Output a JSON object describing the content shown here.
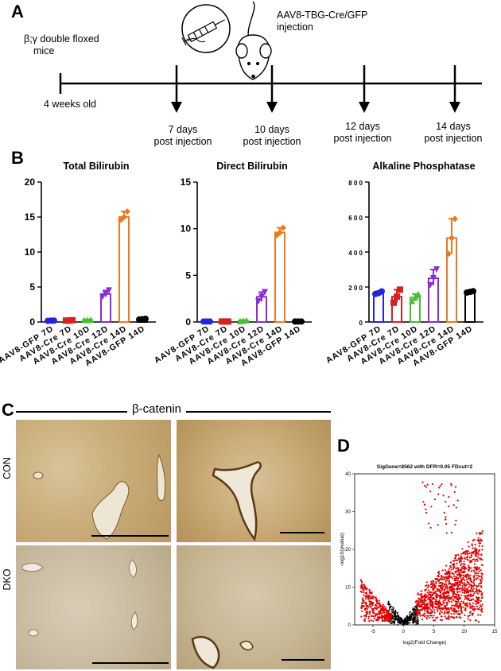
{
  "panel_a": {
    "letter": "A",
    "strain_label": [
      "β;γ double floxed",
      "mice"
    ],
    "injection_label": [
      "AAV8-TBG-Cre/GFP",
      "injection"
    ],
    "start_label": "4 weeks old",
    "timepoints": [
      [
        "7 days",
        "post injection"
      ],
      [
        "10 days",
        "post injection"
      ],
      [
        "12 days",
        "post injection"
      ],
      [
        "14 days",
        "post injection"
      ]
    ]
  },
  "panel_b": {
    "letter": "B"
  },
  "chart_data": [
    {
      "type": "bar",
      "title": "Total Bilirubin",
      "categories": [
        "AAV8-GFP 7D",
        "AAV8-Cre 7D",
        "AAV8-Cre 10D",
        "AAV8-Cre 12D",
        "AAV8-Cre 14D",
        "AAV8-GFP 14D"
      ],
      "values": [
        0.2,
        0.2,
        0.3,
        4.0,
        15.0,
        0.4
      ],
      "points": [
        [
          0.15,
          0.2,
          0.2
        ],
        [
          0.2,
          0.2,
          0.25
        ],
        [
          0.3,
          0.3,
          0.35
        ],
        [
          3.6,
          4.0,
          4.5
        ],
        [
          14.6,
          15.0,
          15.8
        ],
        [
          0.35,
          0.4,
          0.45
        ]
      ],
      "ylim": [
        0,
        20
      ],
      "yticks": [
        "0",
        "5",
        "10",
        "15",
        "20"
      ],
      "colors": [
        "#2424e0",
        "#d82020",
        "#44c030",
        "#8c2ad8",
        "#ec7a1c",
        "#000000"
      ]
    },
    {
      "type": "bar",
      "title": "Direct Bilirubin",
      "categories": [
        "AAV8-GFP 7D",
        "AAV8-Cre 7D",
        "AAV8-Cre 10D",
        "AAV8-Cre 12D",
        "AAV8-Cre 14D",
        "AAV8-GFP 14D"
      ],
      "values": [
        0.05,
        0.05,
        0.15,
        2.7,
        9.6,
        0.05
      ],
      "points": [
        [
          0.05,
          0.05,
          0.05
        ],
        [
          0.05,
          0.05,
          0.05
        ],
        [
          0.1,
          0.15,
          0.2
        ],
        [
          2.2,
          2.7,
          3.2
        ],
        [
          9.3,
          9.6,
          10.1
        ],
        [
          0.05,
          0.05,
          0.05
        ]
      ],
      "ylim": [
        0,
        15
      ],
      "yticks": [
        "0",
        "5",
        "10",
        "15"
      ],
      "colors": [
        "#2424e0",
        "#d82020",
        "#44c030",
        "#8c2ad8",
        "#ec7a1c",
        "#000000"
      ]
    },
    {
      "type": "bar",
      "title": "Alkaline Phosphatase",
      "categories": [
        "AAV8-GFP 7D",
        "AAV8-Cre 7D",
        "AAV8-Cre 10D",
        "AAV8-Cre 12D",
        "AAV8-Cre 14D",
        "AAV8-GFP 14D"
      ],
      "values": [
        165,
        145,
        140,
        250,
        480,
        172
      ],
      "points": [
        [
          160,
          165,
          175
        ],
        [
          110,
          145,
          185
        ],
        [
          120,
          140,
          160
        ],
        [
          210,
          250,
          300
        ],
        [
          390,
          480,
          590
        ],
        [
          168,
          172,
          176
        ]
      ],
      "ylim": [
        0,
        800
      ],
      "yticks": [
        "0",
        "2 0 0",
        "4 0 0",
        "6 0 0",
        "8 0 0"
      ],
      "colors": [
        "#2424e0",
        "#d82020",
        "#44c030",
        "#8c2ad8",
        "#ec7a1c",
        "#000000"
      ]
    },
    {
      "type": "scatter",
      "title": "SigGene=8562 with DFR=0.05 FDcut=2",
      "xlabel": "log2(Fold Change)",
      "ylabel": "-log10(pvalue)",
      "xlim": [
        -8,
        15
      ],
      "ylim": [
        0,
        40
      ],
      "xticks": [
        "-5",
        "0",
        "5",
        "10",
        "15"
      ],
      "yticks": [
        "0",
        "10",
        "20",
        "30",
        "40"
      ],
      "colors": [
        "#000000",
        "#e00000"
      ]
    }
  ],
  "panel_c": {
    "letter": "C",
    "marker_label": "β-catenin",
    "row_labels": [
      "CON",
      "DKO"
    ]
  },
  "panel_d": {
    "letter": "D"
  }
}
